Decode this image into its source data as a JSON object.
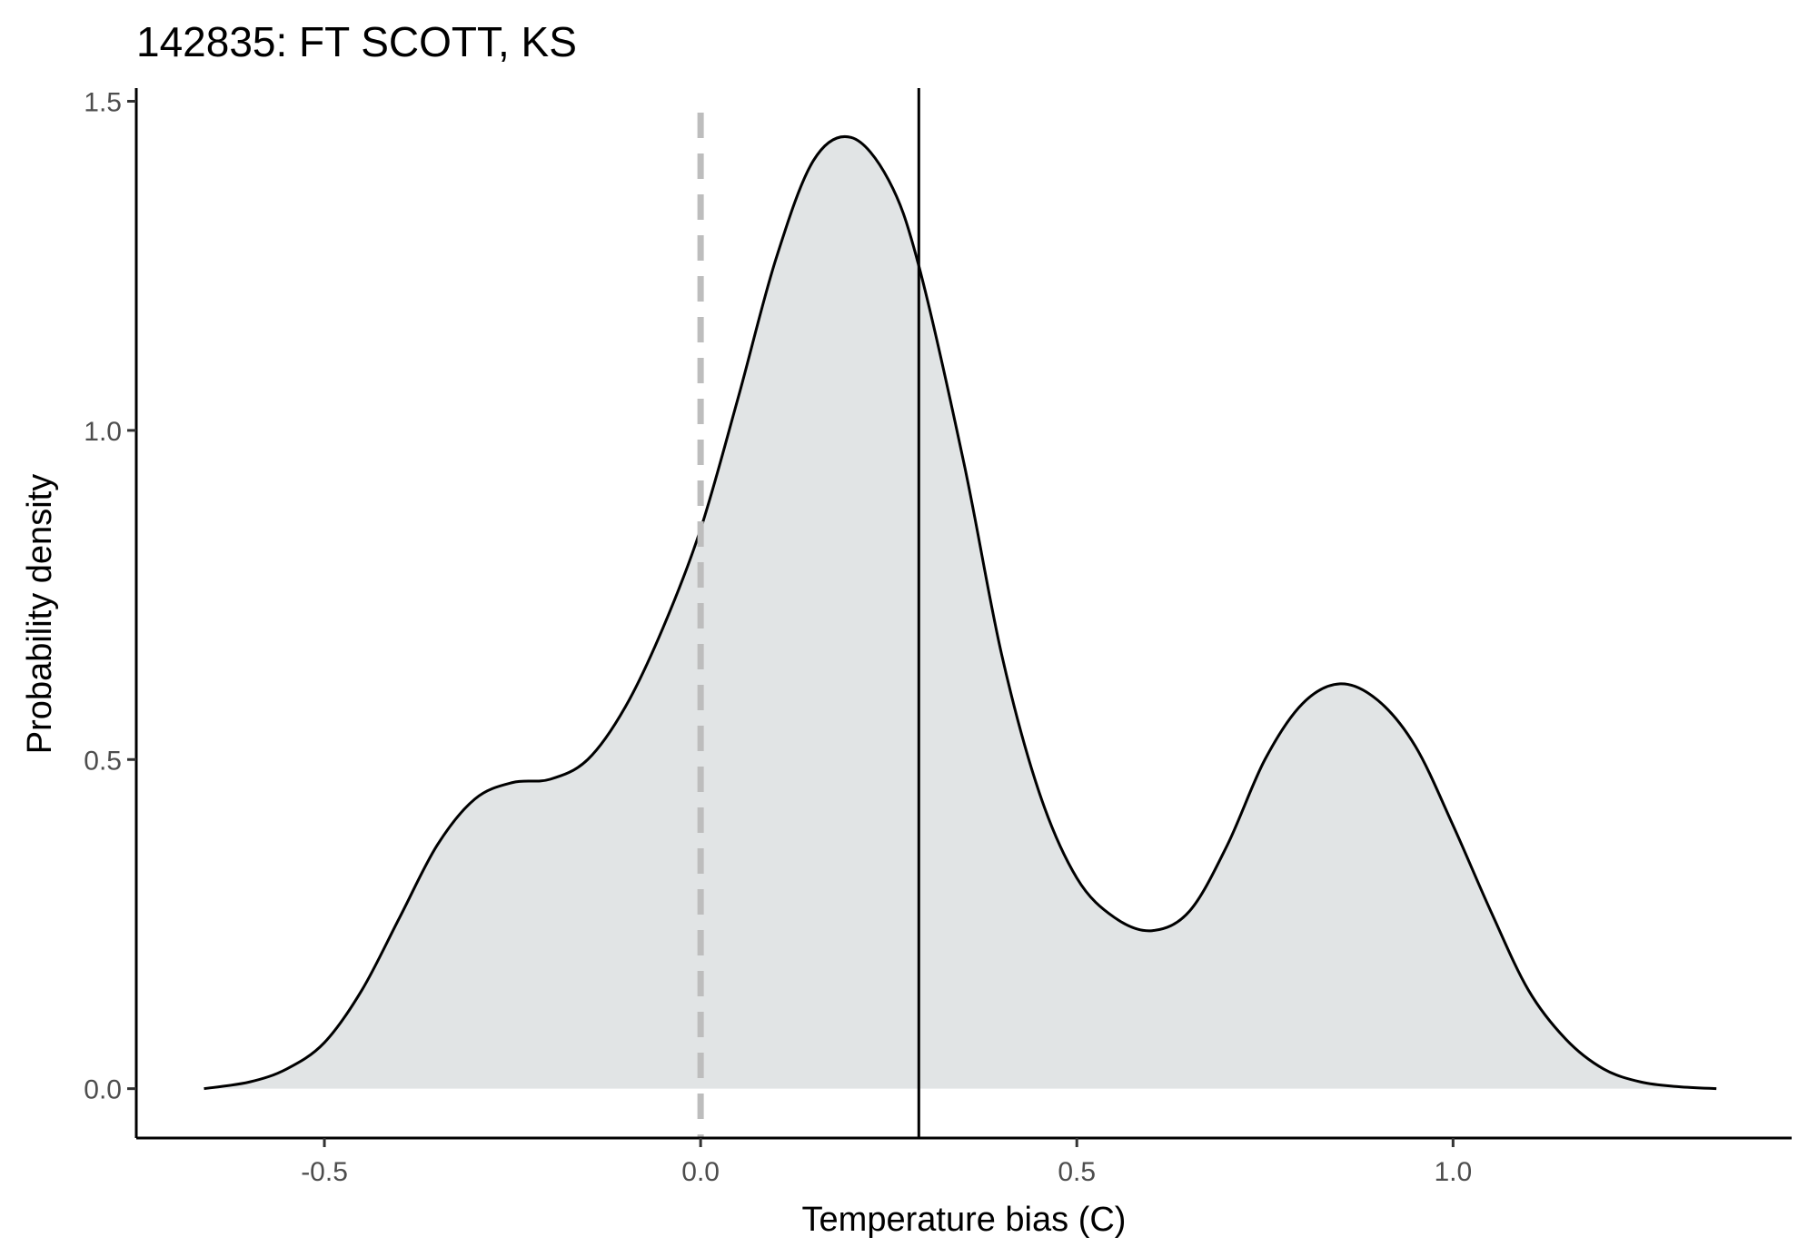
{
  "chart_data": {
    "type": "area",
    "title": "142835: FT SCOTT, KS",
    "xlabel": "Temperature bias (C)",
    "ylabel": "Probability density",
    "xlim": [
      -0.75,
      1.45
    ],
    "ylim": [
      -0.075,
      1.52
    ],
    "xticks": [
      -0.5,
      0.0,
      0.5,
      1.0
    ],
    "xtick_labels": [
      "-0.5",
      "0.0",
      "0.5",
      "1.0"
    ],
    "yticks": [
      0.0,
      0.5,
      1.0,
      1.5
    ],
    "ytick_labels": [
      "0.0",
      "0.5",
      "1.0",
      "1.5"
    ],
    "grid": false,
    "fill_color": "#e1e4e5",
    "line_color": "#000000",
    "reference_lines": [
      {
        "x": 0.0,
        "style": "dashed",
        "color": "#bdbdbd"
      },
      {
        "x": 0.29,
        "style": "solid",
        "color": "#000000"
      }
    ],
    "series": [
      {
        "x": [
          -0.66,
          -0.6,
          -0.55,
          -0.5,
          -0.45,
          -0.4,
          -0.35,
          -0.3,
          -0.25,
          -0.2,
          -0.15,
          -0.1,
          -0.05,
          0.0,
          0.05,
          0.1,
          0.15,
          0.2,
          0.25,
          0.29,
          0.35,
          0.4,
          0.45,
          0.5,
          0.55,
          0.6,
          0.65,
          0.7,
          0.75,
          0.8,
          0.85,
          0.9,
          0.95,
          1.0,
          1.05,
          1.1,
          1.15,
          1.2,
          1.25,
          1.3,
          1.35
        ],
        "y": [
          0.0,
          0.01,
          0.03,
          0.07,
          0.15,
          0.26,
          0.37,
          0.44,
          0.465,
          0.47,
          0.5,
          0.58,
          0.7,
          0.85,
          1.05,
          1.26,
          1.41,
          1.445,
          1.38,
          1.25,
          0.95,
          0.66,
          0.45,
          0.32,
          0.26,
          0.24,
          0.27,
          0.37,
          0.5,
          0.585,
          0.615,
          0.59,
          0.52,
          0.4,
          0.27,
          0.15,
          0.075,
          0.03,
          0.01,
          0.003,
          0.0
        ]
      }
    ]
  }
}
